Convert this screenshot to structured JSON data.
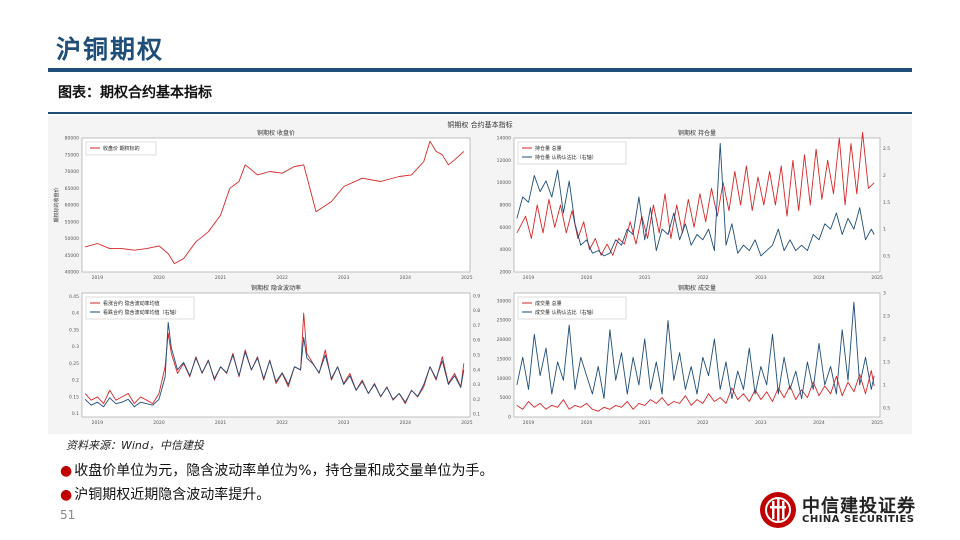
{
  "slide": {
    "title": "沪铜期权",
    "subtitle": "图表：期权合约基本指标",
    "source": "资料来源：Wind，中信建投",
    "bullets": [
      "收盘价单位为元，隐含波动率单位为%，持仓量和成交量单位为手。",
      "沪铜期权近期隐含波动率提升。"
    ],
    "page_number": "51",
    "logo": {
      "cn": "中信建投证券",
      "en": "CHINA SECURITIES"
    }
  },
  "figure": {
    "suptitle": "铜期权 合约基本指标"
  },
  "colors": {
    "red": "#d62728",
    "blue": "#1f4e79",
    "accent": "#1f4e79",
    "bullet": "#c00000"
  },
  "chart_data": [
    {
      "type": "line",
      "title": "铜期权 收盘价",
      "ylabel": "期权标的收盘价",
      "ylim": [
        40000,
        80000
      ],
      "yticks": [
        40000,
        45000,
        50000,
        55000,
        60000,
        65000,
        70000,
        75000,
        80000
      ],
      "xticks": [
        "2019",
        "2020",
        "2021",
        "2022",
        "2023",
        "2024",
        "2025"
      ],
      "legend": "top-left",
      "series": [
        {
          "name": "收盘价 期权标的",
          "color": "red",
          "x": [
            2018.8,
            2019.0,
            2019.2,
            2019.4,
            2019.6,
            2019.8,
            2020.0,
            2020.15,
            2020.25,
            2020.4,
            2020.6,
            2020.8,
            2021.0,
            2021.15,
            2021.3,
            2021.4,
            2021.6,
            2021.8,
            2022.0,
            2022.2,
            2022.35,
            2022.45,
            2022.55,
            2022.8,
            2023.0,
            2023.3,
            2023.6,
            2023.9,
            2024.1,
            2024.3,
            2024.4,
            2024.5,
            2024.6,
            2024.7,
            2024.8,
            2024.95
          ],
          "y": [
            47500,
            48500,
            47000,
            47000,
            46500,
            47000,
            47800,
            45500,
            42500,
            44000,
            49000,
            52000,
            57000,
            65000,
            67000,
            72000,
            69000,
            70000,
            69500,
            71500,
            72000,
            65000,
            58000,
            61000,
            65500,
            68000,
            67000,
            68500,
            69000,
            73000,
            79000,
            76000,
            75000,
            72000,
            73500,
            76000
          ]
        }
      ]
    },
    {
      "type": "line",
      "title": "铜期权 持仓量",
      "ylim": [
        2000,
        14000
      ],
      "yticks": [
        2000,
        4000,
        6000,
        8000,
        10000,
        12000,
        14000
      ],
      "y2lim": [
        0.2,
        2.7
      ],
      "y2ticks": [
        0.5,
        1.0,
        1.5,
        2.0,
        2.5
      ],
      "xticks": [
        "2019",
        "2020",
        "2021",
        "2022",
        "2023",
        "2024",
        "2025"
      ],
      "legend": "top-left",
      "series": [
        {
          "name": "持仓量 总量",
          "color": "red",
          "axis": "left",
          "x": [
            2018.8,
            2018.95,
            2019.05,
            2019.15,
            2019.25,
            2019.35,
            2019.45,
            2019.55,
            2019.65,
            2019.75,
            2019.85,
            2019.95,
            2020.05,
            2020.15,
            2020.25,
            2020.35,
            2020.45,
            2020.55,
            2020.65,
            2020.75,
            2020.85,
            2020.95,
            2021.05,
            2021.15,
            2021.25,
            2021.35,
            2021.45,
            2021.55,
            2021.65,
            2021.75,
            2021.85,
            2021.95,
            2022.05,
            2022.15,
            2022.25,
            2022.35,
            2022.45,
            2022.55,
            2022.65,
            2022.75,
            2022.85,
            2022.95,
            2023.05,
            2023.15,
            2023.25,
            2023.35,
            2023.45,
            2023.55,
            2023.65,
            2023.75,
            2023.85,
            2023.95,
            2024.05,
            2024.15,
            2024.25,
            2024.35,
            2024.45,
            2024.55,
            2024.65,
            2024.75,
            2024.85,
            2024.95
          ],
          "y": [
            5500,
            7000,
            5000,
            8000,
            5500,
            8500,
            6000,
            8000,
            5500,
            7500,
            5000,
            6500,
            4000,
            5000,
            3500,
            4500,
            3500,
            5000,
            4500,
            6500,
            4500,
            7000,
            5000,
            8000,
            5500,
            9000,
            5000,
            8000,
            5500,
            8500,
            6000,
            9000,
            6500,
            9500,
            7000,
            10000,
            7500,
            11000,
            8000,
            11500,
            7500,
            10500,
            8000,
            11000,
            8000,
            11500,
            7000,
            12000,
            7500,
            12500,
            8000,
            13000,
            8500,
            12000,
            9000,
            14000,
            8000,
            13500,
            9000,
            14500,
            9500,
            10000
          ]
        },
        {
          "name": "持仓量 认购认沽比（右轴）",
          "color": "blue",
          "axis": "right",
          "x": [
            2018.8,
            2018.9,
            2019.0,
            2019.1,
            2019.2,
            2019.3,
            2019.4,
            2019.5,
            2019.6,
            2019.7,
            2019.8,
            2019.9,
            2020.0,
            2020.1,
            2020.2,
            2020.3,
            2020.4,
            2020.5,
            2020.6,
            2020.7,
            2020.8,
            2020.9,
            2021.0,
            2021.1,
            2021.2,
            2021.3,
            2021.4,
            2021.5,
            2021.6,
            2021.7,
            2021.8,
            2021.9,
            2022.0,
            2022.1,
            2022.2,
            2022.3,
            2022.4,
            2022.5,
            2022.6,
            2022.7,
            2022.8,
            2022.9,
            2023.0,
            2023.1,
            2023.2,
            2023.3,
            2023.4,
            2023.5,
            2023.6,
            2023.7,
            2023.8,
            2023.9,
            2024.0,
            2024.1,
            2024.2,
            2024.3,
            2024.4,
            2024.5,
            2024.6,
            2024.7,
            2024.8,
            2024.9,
            2024.95
          ],
          "y": [
            1.2,
            1.6,
            1.5,
            2.0,
            1.7,
            1.9,
            1.6,
            2.1,
            1.3,
            1.9,
            1.1,
            0.7,
            0.8,
            0.55,
            0.6,
            0.5,
            0.55,
            0.8,
            0.7,
            1.0,
            0.9,
            1.6,
            0.8,
            1.4,
            0.6,
            1.0,
            0.9,
            1.3,
            0.8,
            1.1,
            0.7,
            0.9,
            0.8,
            1.0,
            0.6,
            2.6,
            0.7,
            1.1,
            0.55,
            0.7,
            0.6,
            0.8,
            0.5,
            0.6,
            0.7,
            1.0,
            0.6,
            0.8,
            0.6,
            0.7,
            0.6,
            0.9,
            0.8,
            1.1,
            1.0,
            1.3,
            0.9,
            1.2,
            1.0,
            1.4,
            0.8,
            1.0,
            0.9
          ]
        }
      ]
    },
    {
      "type": "line",
      "title": "铜期权 隐含波动率",
      "ylim": [
        0.09,
        0.46
      ],
      "yticks": [
        0.1,
        0.15,
        0.2,
        0.25,
        0.3,
        0.35,
        0.4,
        0.45
      ],
      "y2lim": [
        0.08,
        0.92
      ],
      "y2ticks": [
        0.1,
        0.2,
        0.3,
        0.4,
        0.5,
        0.6,
        0.7,
        0.8,
        0.9
      ],
      "xticks": [
        "2019",
        "2020",
        "2021",
        "2022",
        "2023",
        "2024",
        "2025"
      ],
      "legend": "top-left",
      "series": [
        {
          "name": "看涨合约 隐含波动率均值",
          "color": "red",
          "axis": "left",
          "x": [
            2018.8,
            2018.9,
            2019.0,
            2019.1,
            2019.2,
            2019.3,
            2019.4,
            2019.5,
            2019.6,
            2019.7,
            2019.8,
            2019.9,
            2020.0,
            2020.1,
            2020.15,
            2020.2,
            2020.3,
            2020.4,
            2020.5,
            2020.6,
            2020.7,
            2020.8,
            2020.9,
            2021.0,
            2021.1,
            2021.2,
            2021.3,
            2021.4,
            2021.5,
            2021.6,
            2021.7,
            2021.8,
            2021.9,
            2022.0,
            2022.1,
            2022.2,
            2022.3,
            2022.35,
            2022.4,
            2022.5,
            2022.6,
            2022.7,
            2022.8,
            2022.9,
            2023.0,
            2023.1,
            2023.2,
            2023.3,
            2023.4,
            2023.5,
            2023.6,
            2023.7,
            2023.8,
            2023.9,
            2024.0,
            2024.1,
            2024.2,
            2024.3,
            2024.4,
            2024.5,
            2024.6,
            2024.7,
            2024.8,
            2024.9,
            2024.95
          ],
          "y": [
            0.16,
            0.14,
            0.15,
            0.13,
            0.17,
            0.14,
            0.15,
            0.16,
            0.13,
            0.15,
            0.14,
            0.13,
            0.16,
            0.24,
            0.34,
            0.28,
            0.22,
            0.25,
            0.21,
            0.27,
            0.22,
            0.26,
            0.2,
            0.24,
            0.22,
            0.28,
            0.21,
            0.29,
            0.23,
            0.27,
            0.2,
            0.26,
            0.19,
            0.22,
            0.18,
            0.24,
            0.23,
            0.4,
            0.28,
            0.25,
            0.22,
            0.29,
            0.2,
            0.24,
            0.19,
            0.22,
            0.17,
            0.2,
            0.16,
            0.19,
            0.15,
            0.18,
            0.14,
            0.16,
            0.13,
            0.17,
            0.15,
            0.18,
            0.24,
            0.2,
            0.27,
            0.19,
            0.22,
            0.18,
            0.25
          ]
        },
        {
          "name": "看跌合约 隐含波动率均值（右轴）",
          "color": "blue",
          "axis": "right",
          "x": [
            2018.8,
            2018.9,
            2019.0,
            2019.1,
            2019.2,
            2019.3,
            2019.4,
            2019.5,
            2019.6,
            2019.7,
            2019.8,
            2019.9,
            2020.0,
            2020.1,
            2020.15,
            2020.2,
            2020.3,
            2020.4,
            2020.5,
            2020.6,
            2020.7,
            2020.8,
            2020.9,
            2021.0,
            2021.1,
            2021.2,
            2021.3,
            2021.4,
            2021.5,
            2021.6,
            2021.7,
            2021.8,
            2021.9,
            2022.0,
            2022.1,
            2022.2,
            2022.3,
            2022.35,
            2022.4,
            2022.5,
            2022.6,
            2022.7,
            2022.8,
            2022.9,
            2023.0,
            2023.1,
            2023.2,
            2023.3,
            2023.4,
            2023.5,
            2023.6,
            2023.7,
            2023.8,
            2023.9,
            2024.0,
            2024.1,
            2024.2,
            2024.3,
            2024.4,
            2024.5,
            2024.6,
            2024.7,
            2024.8,
            2024.9,
            2024.95
          ],
          "y": [
            0.2,
            0.16,
            0.18,
            0.15,
            0.21,
            0.17,
            0.18,
            0.2,
            0.15,
            0.18,
            0.17,
            0.16,
            0.2,
            0.35,
            0.72,
            0.55,
            0.4,
            0.45,
            0.36,
            0.48,
            0.38,
            0.46,
            0.34,
            0.42,
            0.38,
            0.5,
            0.36,
            0.52,
            0.4,
            0.48,
            0.34,
            0.46,
            0.32,
            0.38,
            0.3,
            0.42,
            0.4,
            0.62,
            0.48,
            0.44,
            0.38,
            0.5,
            0.34,
            0.42,
            0.3,
            0.36,
            0.26,
            0.32,
            0.24,
            0.3,
            0.22,
            0.28,
            0.2,
            0.24,
            0.18,
            0.26,
            0.22,
            0.3,
            0.42,
            0.34,
            0.46,
            0.3,
            0.36,
            0.28,
            0.4
          ]
        }
      ]
    },
    {
      "type": "line",
      "title": "铜期权 成交量",
      "ylim": [
        0,
        32000
      ],
      "yticks": [
        0,
        5000,
        10000,
        15000,
        20000,
        25000,
        30000
      ],
      "y2lim": [
        0.3,
        3.0
      ],
      "y2ticks": [
        0.5,
        1.0,
        1.5,
        2.0,
        2.5,
        3.0
      ],
      "xticks": [
        "2019",
        "2020",
        "2021",
        "2022",
        "2023",
        "2024",
        "2025"
      ],
      "legend": "top-left",
      "series": [
        {
          "name": "成交量 总量",
          "color": "red",
          "axis": "left",
          "x": [
            2018.8,
            2018.9,
            2019.0,
            2019.1,
            2019.2,
            2019.3,
            2019.4,
            2019.5,
            2019.6,
            2019.7,
            2019.8,
            2019.9,
            2020.0,
            2020.1,
            2020.2,
            2020.3,
            2020.4,
            2020.5,
            2020.6,
            2020.7,
            2020.8,
            2020.9,
            2021.0,
            2021.1,
            2021.2,
            2021.3,
            2021.4,
            2021.5,
            2021.6,
            2021.7,
            2021.8,
            2021.9,
            2022.0,
            2022.1,
            2022.2,
            2022.3,
            2022.4,
            2022.5,
            2022.6,
            2022.7,
            2022.8,
            2022.9,
            2023.0,
            2023.1,
            2023.2,
            2023.3,
            2023.4,
            2023.5,
            2023.6,
            2023.7,
            2023.8,
            2023.9,
            2024.0,
            2024.1,
            2024.2,
            2024.3,
            2024.4,
            2024.5,
            2024.6,
            2024.7,
            2024.8,
            2024.9,
            2024.95
          ],
          "y": [
            3000,
            2000,
            4000,
            2500,
            3500,
            2000,
            3000,
            2500,
            4500,
            2000,
            3000,
            2500,
            3500,
            2000,
            1500,
            2500,
            2000,
            3000,
            2500,
            4000,
            2000,
            3500,
            3000,
            4500,
            3500,
            5000,
            3000,
            4000,
            3500,
            5500,
            3000,
            4500,
            3500,
            6000,
            4000,
            5000,
            3500,
            7500,
            4500,
            6000,
            4000,
            7000,
            4500,
            6500,
            4000,
            7500,
            5000,
            8000,
            4500,
            7000,
            5000,
            9000,
            5500,
            8000,
            6000,
            10500,
            5500,
            9000,
            6500,
            11000,
            6000,
            12000,
            8000
          ]
        },
        {
          "name": "成交量 认购认沽比（右轴）",
          "color": "blue",
          "axis": "right",
          "x": [
            2018.8,
            2018.9,
            2019.0,
            2019.1,
            2019.2,
            2019.3,
            2019.4,
            2019.5,
            2019.6,
            2019.7,
            2019.8,
            2019.9,
            2020.0,
            2020.1,
            2020.2,
            2020.3,
            2020.4,
            2020.5,
            2020.6,
            2020.7,
            2020.8,
            2020.9,
            2021.0,
            2021.1,
            2021.2,
            2021.3,
            2021.4,
            2021.5,
            2021.6,
            2021.7,
            2021.8,
            2021.9,
            2022.0,
            2022.1,
            2022.2,
            2022.3,
            2022.4,
            2022.5,
            2022.6,
            2022.7,
            2022.8,
            2022.9,
            2023.0,
            2023.1,
            2023.2,
            2023.3,
            2023.4,
            2023.5,
            2023.6,
            2023.7,
            2023.8,
            2023.9,
            2024.0,
            2024.1,
            2024.2,
            2024.3,
            2024.4,
            2024.5,
            2024.6,
            2024.7,
            2024.8,
            2024.9,
            2024.95
          ],
          "y": [
            1.0,
            1.6,
            0.9,
            2.1,
            1.2,
            1.8,
            0.8,
            1.5,
            1.1,
            2.3,
            0.9,
            1.6,
            1.2,
            0.8,
            1.4,
            0.7,
            2.2,
            1.1,
            1.7,
            0.8,
            1.6,
            1.0,
            2.0,
            0.9,
            1.5,
            0.8,
            2.4,
            1.1,
            1.7,
            0.9,
            1.4,
            0.8,
            1.6,
            1.2,
            2.0,
            0.9,
            1.5,
            0.7,
            1.3,
            0.9,
            1.8,
            0.8,
            1.4,
            1.0,
            2.1,
            0.8,
            1.6,
            0.9,
            1.3,
            0.7,
            1.5,
            0.9,
            1.9,
            1.0,
            1.4,
            0.8,
            2.2,
            1.1,
            2.8,
            1.0,
            1.6,
            0.9,
            1.2
          ]
        }
      ]
    }
  ]
}
